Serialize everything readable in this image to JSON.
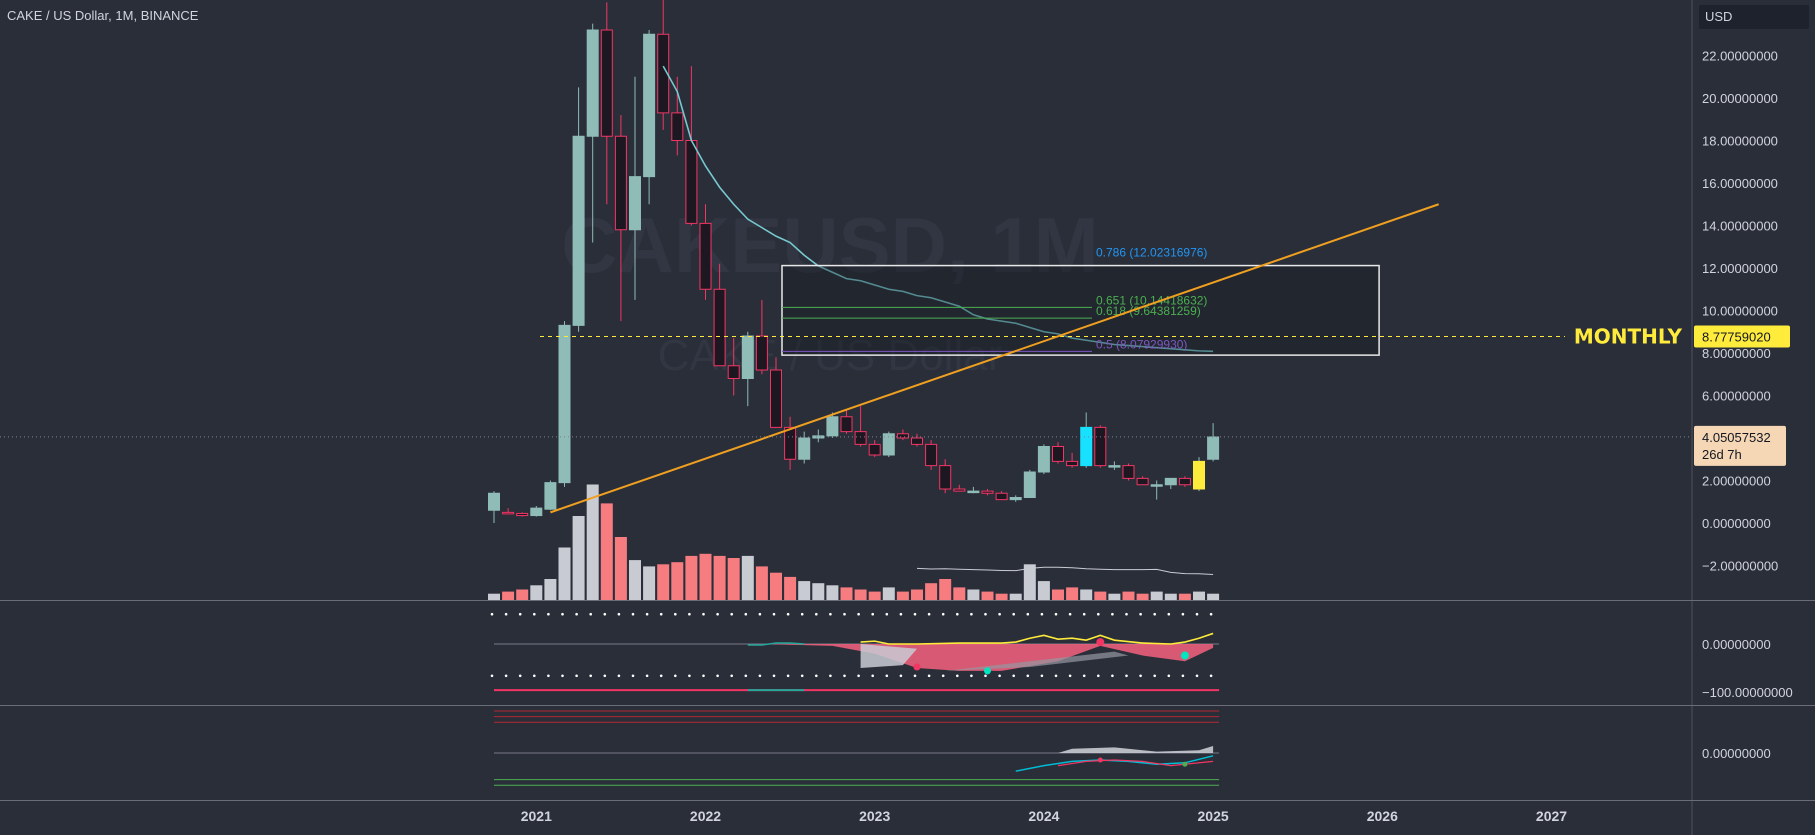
{
  "header": {
    "symbol": "CAKE / US Dollar",
    "interval": "1M",
    "exchange": "BINANCE",
    "currency": "USD"
  },
  "watermark": {
    "ticker": "CAKEUSD, 1M",
    "name": "CAKE / US Dollar"
  },
  "colors": {
    "background": "#2a2e39",
    "bull": "#8fbcb6",
    "bear": "#1c1720",
    "bear_border": "#f23664",
    "volume_down": "#f77c80",
    "volume_up": "#c9cbd3",
    "ma": "#76c9cf",
    "trendline": "#f0a020",
    "monthly": "#ffeb3b",
    "highlight_yellow": "#ffeb3b",
    "highlight_cyan": "#18e0ff"
  },
  "annotations": {
    "monthly_label": "MONTHLY",
    "monthly_price": "8.77759020",
    "fib_0786": "0.786 (12.02316976)",
    "fib_0651": "0.651 (10.14418632)",
    "fib_0618": "0.618 (9.64381259)",
    "fib_05": "0.5 (8.07929930)"
  },
  "price_tag": {
    "price": "4.05057532",
    "countdown": "26d 7h"
  },
  "chart_data": {
    "type": "candlestick",
    "title": "CAKE / US Dollar, 1M, BINANCE",
    "x_ticks": [
      "2021",
      "2022",
      "2023",
      "2024",
      "2025",
      "2026",
      "2027"
    ],
    "price_axis": {
      "ticks": [
        22,
        20,
        18,
        16,
        14,
        12,
        10,
        8,
        6,
        4,
        2,
        0,
        -2
      ],
      "tick_labels": [
        "22.00000000",
        "20.00000000",
        "18.00000000",
        "16.00000000",
        "14.00000000",
        "12.00000000",
        "10.00000000",
        "8.00000000",
        "6.00000000",
        "2.00000000",
        "0.00000000",
        "−2.00000000"
      ],
      "ylim": [
        -3.7,
        23.2
      ]
    },
    "candles": [
      {
        "o": 0.6,
        "h": 1.5,
        "l": 0.0,
        "c": 1.4,
        "vol": 3
      },
      {
        "o": 0.5,
        "h": 0.7,
        "l": 0.4,
        "c": 0.45,
        "vol": 4
      },
      {
        "o": 0.45,
        "h": 0.5,
        "l": 0.3,
        "c": 0.35,
        "vol": 5
      },
      {
        "o": 0.35,
        "h": 0.8,
        "l": 0.3,
        "c": 0.7,
        "vol": 7
      },
      {
        "o": 0.65,
        "h": 2.0,
        "l": 0.6,
        "c": 1.9,
        "vol": 10
      },
      {
        "o": 1.9,
        "h": 9.5,
        "l": 1.7,
        "c": 9.3,
        "vol": 25
      },
      {
        "o": 9.3,
        "h": 20.5,
        "l": 9.0,
        "c": 18.2,
        "vol": 40
      },
      {
        "o": 18.2,
        "h": 23.5,
        "l": 13.2,
        "c": 23.2,
        "vol": 55
      },
      {
        "o": 23.2,
        "h": 24.5,
        "l": 15.0,
        "c": 18.2,
        "vol": 46
      },
      {
        "o": 18.2,
        "h": 19.2,
        "l": 9.5,
        "c": 13.8,
        "vol": 30
      },
      {
        "o": 13.8,
        "h": 21.0,
        "l": 10.5,
        "c": 16.3,
        "vol": 19
      },
      {
        "o": 16.3,
        "h": 23.2,
        "l": 15.0,
        "c": 23.0,
        "vol": 16
      },
      {
        "o": 23.0,
        "h": 25.5,
        "l": 18.5,
        "c": 19.3,
        "vol": 17
      },
      {
        "o": 19.3,
        "h": 21.0,
        "l": 17.3,
        "c": 18.0,
        "vol": 18
      },
      {
        "o": 18.0,
        "h": 21.5,
        "l": 14.0,
        "c": 14.1,
        "vol": 21
      },
      {
        "o": 14.1,
        "h": 15.0,
        "l": 10.5,
        "c": 11.0,
        "vol": 22
      },
      {
        "o": 11.0,
        "h": 12.2,
        "l": 7.4,
        "c": 7.4,
        "vol": 21
      },
      {
        "o": 7.4,
        "h": 8.7,
        "l": 6.0,
        "c": 6.8,
        "vol": 20
      },
      {
        "o": 6.8,
        "h": 9.0,
        "l": 5.5,
        "c": 8.8,
        "vol": 21
      },
      {
        "o": 8.8,
        "h": 10.5,
        "l": 7.0,
        "c": 7.2,
        "vol": 16
      },
      {
        "o": 7.2,
        "h": 7.8,
        "l": 4.5,
        "c": 4.5,
        "vol": 13
      },
      {
        "o": 4.5,
        "h": 5.0,
        "l": 2.5,
        "c": 3.0,
        "vol": 11
      },
      {
        "o": 3.0,
        "h": 4.3,
        "l": 2.8,
        "c": 4.0,
        "vol": 9
      },
      {
        "o": 4.0,
        "h": 4.4,
        "l": 3.8,
        "c": 4.1,
        "vol": 8
      },
      {
        "o": 4.1,
        "h": 5.2,
        "l": 4.0,
        "c": 5.0,
        "vol": 7
      },
      {
        "o": 5.0,
        "h": 5.3,
        "l": 4.2,
        "c": 4.3,
        "vol": 6
      },
      {
        "o": 4.3,
        "h": 5.5,
        "l": 3.6,
        "c": 3.7,
        "vol": 5
      },
      {
        "o": 3.7,
        "h": 3.9,
        "l": 3.1,
        "c": 3.2,
        "vol": 4
      },
      {
        "o": 3.2,
        "h": 4.3,
        "l": 3.1,
        "c": 4.2,
        "vol": 6
      },
      {
        "o": 4.2,
        "h": 4.4,
        "l": 3.9,
        "c": 4.0,
        "vol": 4
      },
      {
        "o": 4.0,
        "h": 4.2,
        "l": 3.6,
        "c": 3.7,
        "vol": 5
      },
      {
        "o": 3.7,
        "h": 3.9,
        "l": 2.5,
        "c": 2.7,
        "vol": 8
      },
      {
        "o": 2.7,
        "h": 3.0,
        "l": 1.4,
        "c": 1.6,
        "vol": 10
      },
      {
        "o": 1.6,
        "h": 1.8,
        "l": 1.5,
        "c": 1.5,
        "vol": 6
      },
      {
        "o": 1.5,
        "h": 1.7,
        "l": 1.4,
        "c": 1.5,
        "vol": 5
      },
      {
        "o": 1.5,
        "h": 1.6,
        "l": 1.3,
        "c": 1.4,
        "vol": 4
      },
      {
        "o": 1.4,
        "h": 1.5,
        "l": 1.1,
        "c": 1.1,
        "vol": 3
      },
      {
        "o": 1.1,
        "h": 1.3,
        "l": 1.0,
        "c": 1.2,
        "vol": 3
      },
      {
        "o": 1.2,
        "h": 2.5,
        "l": 1.2,
        "c": 2.4,
        "vol": 17
      },
      {
        "o": 2.4,
        "h": 3.7,
        "l": 2.3,
        "c": 3.6,
        "vol": 9
      },
      {
        "o": 3.6,
        "h": 3.8,
        "l": 2.8,
        "c": 2.9,
        "vol": 5
      },
      {
        "o": 2.9,
        "h": 3.3,
        "l": 2.6,
        "c": 2.7,
        "vol": 6
      },
      {
        "o": 2.7,
        "h": 5.2,
        "l": 2.6,
        "c": 4.5,
        "vol": 5
      },
      {
        "o": 4.5,
        "h": 4.6,
        "l": 2.6,
        "c": 2.7,
        "vol": 4
      },
      {
        "o": 2.7,
        "h": 2.9,
        "l": 2.5,
        "c": 2.7,
        "vol": 3
      },
      {
        "o": 2.7,
        "h": 2.8,
        "l": 2.0,
        "c": 2.1,
        "vol": 4
      },
      {
        "o": 2.1,
        "h": 2.2,
        "l": 1.8,
        "c": 1.8,
        "vol": 3
      },
      {
        "o": 1.8,
        "h": 2.0,
        "l": 1.1,
        "c": 1.8,
        "vol": 4
      },
      {
        "o": 1.8,
        "h": 2.1,
        "l": 1.6,
        "c": 2.1,
        "vol": 3
      },
      {
        "o": 2.1,
        "h": 2.2,
        "l": 1.7,
        "c": 1.8,
        "vol": 3
      },
      {
        "o": 1.6,
        "h": 3.1,
        "l": 1.5,
        "c": 2.9,
        "vol": 4
      },
      {
        "o": 3.0,
        "h": 4.7,
        "l": 2.9,
        "c": 4.05,
        "vol": 3
      }
    ],
    "highlighted_candles": [
      {
        "index": 42,
        "color": "highlight_cyan"
      },
      {
        "index": 50,
        "color": "highlight_yellow"
      }
    ],
    "moving_average": [
      {
        "i": 12,
        "v": 21.5
      },
      {
        "i": 13,
        "v": 20.3
      },
      {
        "i": 14,
        "v": 18.0
      },
      {
        "i": 15,
        "v": 16.8
      },
      {
        "i": 16,
        "v": 15.8
      },
      {
        "i": 17,
        "v": 15.0
      },
      {
        "i": 18,
        "v": 14.3
      },
      {
        "i": 19,
        "v": 13.9
      },
      {
        "i": 20,
        "v": 13.5
      },
      {
        "i": 21,
        "v": 13.2
      },
      {
        "i": 22,
        "v": 12.6
      },
      {
        "i": 23,
        "v": 12.1
      },
      {
        "i": 24,
        "v": 11.8
      },
      {
        "i": 25,
        "v": 11.5
      },
      {
        "i": 26,
        "v": 11.4
      },
      {
        "i": 27,
        "v": 11.2
      },
      {
        "i": 28,
        "v": 11.0
      },
      {
        "i": 29,
        "v": 10.9
      },
      {
        "i": 30,
        "v": 10.7
      },
      {
        "i": 31,
        "v": 10.6
      },
      {
        "i": 32,
        "v": 10.4
      },
      {
        "i": 33,
        "v": 10.2
      },
      {
        "i": 34,
        "v": 9.8
      },
      {
        "i": 35,
        "v": 9.6
      },
      {
        "i": 36,
        "v": 9.5
      },
      {
        "i": 37,
        "v": 9.4
      },
      {
        "i": 38,
        "v": 9.2
      },
      {
        "i": 39,
        "v": 9.0
      },
      {
        "i": 40,
        "v": 8.9
      },
      {
        "i": 41,
        "v": 8.7
      },
      {
        "i": 42,
        "v": 8.6
      },
      {
        "i": 43,
        "v": 8.5
      },
      {
        "i": 44,
        "v": 8.4
      },
      {
        "i": 45,
        "v": 8.35
      },
      {
        "i": 46,
        "v": 8.3
      },
      {
        "i": 47,
        "v": 8.25
      },
      {
        "i": 48,
        "v": 8.2
      },
      {
        "i": 49,
        "v": 8.15
      },
      {
        "i": 50,
        "v": 8.1
      },
      {
        "i": 51,
        "v": 8.08
      }
    ],
    "trendline": {
      "from": {
        "i": 4,
        "v": 0.5
      },
      "to": {
        "i": 67,
        "v": 15.0
      }
    },
    "zone": {
      "from_i": 20,
      "to_i": 61,
      "top": 12.02,
      "bottom": 7.9
    },
    "fib_levels": [
      {
        "ratio": 0.786,
        "value": 12.02316976,
        "color": "#2196f3"
      },
      {
        "ratio": 0.651,
        "value": 10.14418632,
        "color": "#4caf50"
      },
      {
        "ratio": 0.618,
        "value": 9.64381259,
        "color": "#4caf50"
      },
      {
        "ratio": 0.5,
        "value": 8.0792993,
        "color": "#7e57c2"
      }
    ],
    "monthly_level": 8.7775902,
    "last_price": 4.05057532,
    "osc1": {
      "tick_labels": [
        "0.00000000",
        "−100.00000000"
      ],
      "ylim": [
        -115,
        40
      ],
      "zero": 0,
      "upper_dots": 30,
      "lower_dots": -30,
      "baseline": -100
    },
    "osc2": {
      "tick_labels": [
        "0.00000000"
      ],
      "ylim": [
        -45,
        45
      ],
      "zero": 0
    },
    "grid": false
  }
}
